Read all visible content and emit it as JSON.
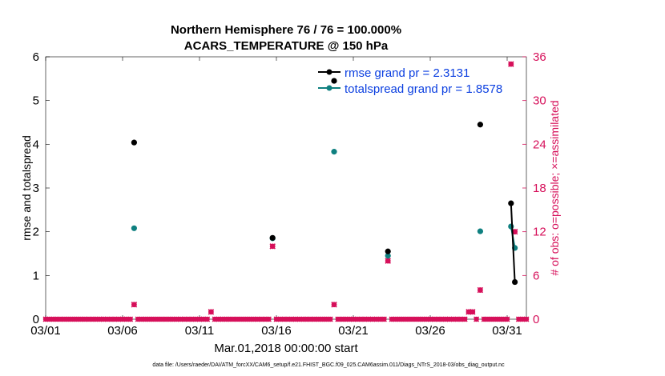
{
  "chart_data": {
    "type": "scatter",
    "title_line1": "Northern Hemisphere 76 / 76 = 100.000%",
    "title_line2": "ACARS_TEMPERATURE @ 150 hPa",
    "xlabel": "Mar.01,2018 00:00:00 start",
    "ylabel_left": "rmse and totalspread",
    "ylabel_right": "# of obs: o=possible; ×=assimilated",
    "footer": "data file: /Users/raeder/DAI/ATM_forcXX/CAM6_setup/f.e21.FHIST_BGC.f09_025.CAM6assim.011/Diags_NTrS_2018-03/obs_diag_output.nc",
    "xlim": [
      0,
      31.25
    ],
    "ylim_left": [
      0,
      6
    ],
    "ylim_right": [
      0,
      36
    ],
    "x_ticks": [
      {
        "x": 0,
        "label": "03/01"
      },
      {
        "x": 5,
        "label": "03/06"
      },
      {
        "x": 10,
        "label": "03/11"
      },
      {
        "x": 15,
        "label": "03/16"
      },
      {
        "x": 20,
        "label": "03/21"
      },
      {
        "x": 25,
        "label": "03/26"
      },
      {
        "x": 30,
        "label": "03/31"
      }
    ],
    "y_ticks_left": [
      "0",
      "1",
      "2",
      "3",
      "4",
      "5",
      "6"
    ],
    "y_ticks_right": [
      "0",
      "6",
      "12",
      "18",
      "24",
      "30",
      "36"
    ],
    "colors": {
      "rmse": "#000000",
      "spread": "#0f8080",
      "obs": "#d6105a",
      "legend_text": "#0b3fe0"
    },
    "legend": [
      {
        "name": "rmse grand pr = 2.3131",
        "color": "#000000"
      },
      {
        "name": "totalspread grand pr = 1.8578",
        "color": "#0f8080"
      }
    ],
    "series": [
      {
        "name": "rmse",
        "axis": "left",
        "points": [
          [
            5.75,
            4.04
          ],
          [
            14.75,
            1.86
          ],
          [
            18.75,
            5.45
          ],
          [
            22.25,
            1.55
          ],
          [
            28.25,
            4.45
          ],
          [
            30.25,
            2.65
          ],
          [
            30.5,
            0.85
          ]
        ],
        "line_segments": [
          [
            [
              30.25,
              2.65
            ],
            [
              30.5,
              0.85
            ]
          ]
        ]
      },
      {
        "name": "totalspread",
        "axis": "left",
        "points": [
          [
            5.75,
            2.08
          ],
          [
            14.75,
            1.85
          ],
          [
            18.75,
            3.83
          ],
          [
            22.25,
            1.45
          ],
          [
            28.25,
            2.01
          ],
          [
            30.25,
            2.12
          ],
          [
            30.5,
            1.63
          ]
        ],
        "line_segments": [
          [
            [
              30.25,
              2.12
            ],
            [
              30.5,
              1.63
            ]
          ]
        ]
      },
      {
        "name": "obs_possible",
        "axis": "right",
        "points": [
          [
            5.75,
            2
          ],
          [
            10.75,
            1
          ],
          [
            14.75,
            10
          ],
          [
            18.75,
            2
          ],
          [
            22.25,
            8
          ],
          [
            27.5,
            1
          ],
          [
            27.75,
            1
          ],
          [
            28.25,
            4
          ],
          [
            30.25,
            35
          ],
          [
            30.5,
            12
          ]
        ]
      },
      {
        "name": "obs_assimilated",
        "axis": "right",
        "points": [
          [
            5.75,
            2
          ],
          [
            10.75,
            1
          ],
          [
            14.75,
            10
          ],
          [
            18.75,
            2
          ],
          [
            22.25,
            8
          ],
          [
            27.5,
            1
          ],
          [
            27.75,
            1
          ],
          [
            28.25,
            4
          ],
          [
            30.25,
            35
          ],
          [
            30.5,
            12
          ]
        ]
      }
    ],
    "zero_obs_step": 0.25
  }
}
